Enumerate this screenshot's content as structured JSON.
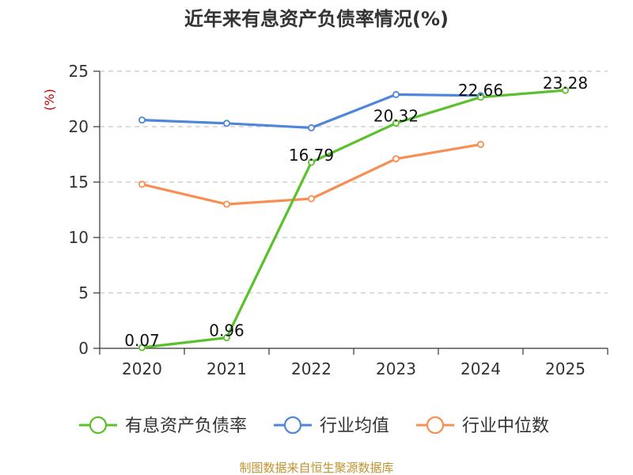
{
  "chart_data": {
    "type": "line",
    "title": "近年来有息资产负债率情况(%)",
    "ylabel": "(%)",
    "categories": [
      "2020",
      "2021",
      "2022",
      "2023",
      "2024",
      "2025"
    ],
    "ylim": [
      0,
      25
    ],
    "yticks": [
      0,
      5,
      10,
      15,
      20,
      25
    ],
    "grid": true,
    "legend_position": "bottom",
    "series": [
      {
        "name": "有息资产负债率",
        "color": "#5ac12c",
        "values": [
          0.07,
          0.96,
          16.79,
          20.32,
          22.66,
          23.28
        ],
        "labels": [
          "0.07",
          "0.96",
          "16.79",
          "20.32",
          "22.66",
          "23.28"
        ]
      },
      {
        "name": "行业均值",
        "color": "#4f86d9",
        "values": [
          20.6,
          20.3,
          19.9,
          22.9,
          22.8,
          null
        ]
      },
      {
        "name": "行业中位数",
        "color": "#f78e54",
        "values": [
          14.8,
          13.0,
          13.5,
          17.1,
          18.4,
          null
        ]
      }
    ],
    "source": "制图数据来自恒生聚源数据库",
    "colors": {
      "ylabel": "#cc0000",
      "source": "#c0932c",
      "axis": "#333333",
      "grid": "#c8c8c8"
    }
  }
}
